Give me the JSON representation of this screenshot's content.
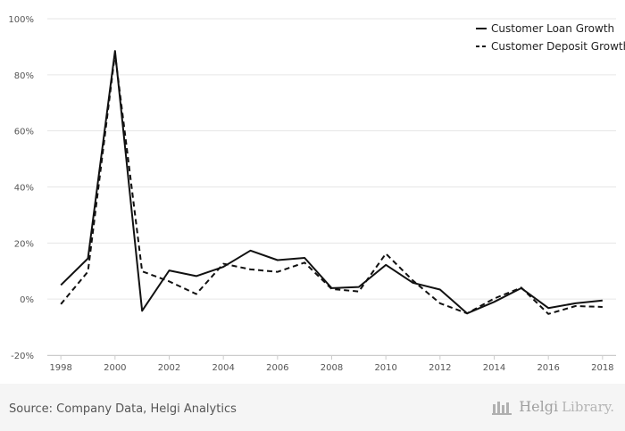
{
  "chart_data": {
    "type": "line",
    "title": "",
    "xlabel": "",
    "ylabel": "",
    "x": [
      1998,
      1999,
      2000,
      2001,
      2002,
      2003,
      2004,
      2005,
      2006,
      2007,
      2008,
      2009,
      2010,
      2011,
      2012,
      2013,
      2014,
      2015,
      2016,
      2017,
      2018
    ],
    "x_ticks": [
      "1998",
      "2000",
      "2002",
      "2004",
      "2006",
      "2008",
      "2010",
      "2012",
      "2014",
      "2016",
      "2018"
    ],
    "ylim": [
      -20,
      100
    ],
    "y_ticks": [
      -20,
      0,
      20,
      40,
      60,
      80,
      100
    ],
    "y_tick_labels": [
      "-20%",
      "0%",
      "20%",
      "40%",
      "60%",
      "80%",
      "100%"
    ],
    "grid": true,
    "legend_position": "top-right",
    "series": [
      {
        "name": "Customer Loan Growth",
        "style": "solid",
        "color": "#111111",
        "values": [
          5,
          14.5,
          88.5,
          -4.2,
          10.2,
          8.2,
          11.5,
          17.3,
          13.9,
          14.7,
          3.9,
          4.3,
          12.2,
          5.8,
          3.4,
          -5.1,
          -1,
          3.9,
          -3.2,
          -1.5,
          -0.5
        ]
      },
      {
        "name": "Customer Deposit Growth",
        "style": "dashed",
        "color": "#111111",
        "values": [
          -1.8,
          9.8,
          87.5,
          9.9,
          6.3,
          1.8,
          12.6,
          10.6,
          9.7,
          13,
          3.6,
          2.7,
          16.2,
          6.6,
          -1.5,
          -5.1,
          0.2,
          4.1,
          -5.3,
          -2.5,
          -2.8
        ]
      }
    ]
  },
  "footer": {
    "source": "Source: Company Data, Helgi Analytics",
    "brand_name": "Helgi",
    "brand_sub": "Library."
  }
}
